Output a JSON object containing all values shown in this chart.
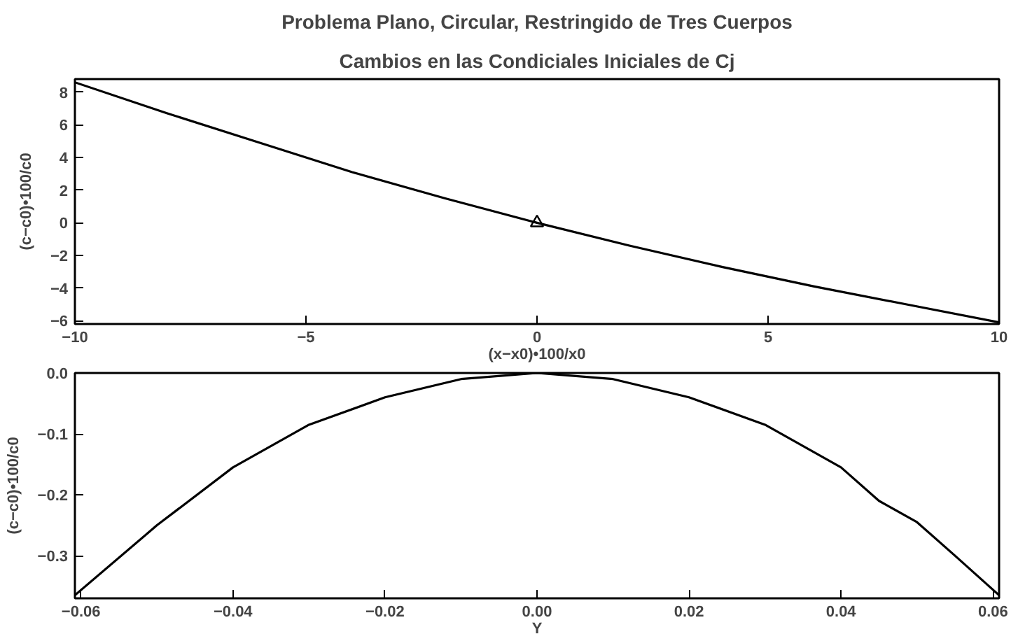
{
  "chart_data": [
    {
      "type": "line",
      "title": "Problema Plano, Circular, Restringido de Tres Cuerpos",
      "subtitle": "Cambios en las Condiciales Iniciales de Cj",
      "xlabel": "(x−x0)•100/x0",
      "ylabel": "(c−c0)•100/c0",
      "xlim": [
        -10,
        10
      ],
      "ylim": [
        -6.2,
        8.8
      ],
      "xticks": [
        -10,
        -5,
        0,
        5,
        10
      ],
      "yticks": [
        -6,
        -4,
        -2,
        0,
        2,
        4,
        6,
        8
      ],
      "grid": false,
      "series": [
        {
          "color": "#000000",
          "x": [
            -10,
            -8,
            -6,
            -4,
            -2,
            0,
            2,
            4,
            6,
            8,
            10
          ],
          "values": [
            8.6,
            6.7,
            4.9,
            3.1,
            1.5,
            0,
            -1.4,
            -2.7,
            -3.9,
            -5.0,
            -6.1
          ]
        },
        {
          "type": "scatter",
          "marker": "triangle",
          "color": "#000000",
          "x": [
            0
          ],
          "values": [
            0
          ]
        }
      ]
    },
    {
      "type": "line",
      "xlabel": "Y",
      "ylabel": "(c−c0)•100/c0",
      "xlim": [
        -0.0608,
        0.0608
      ],
      "ylim": [
        -0.37,
        0.0
      ],
      "xticks": [
        {
          "value": -0.06,
          "label": "−0.06"
        },
        {
          "value": -0.04,
          "label": "−0.04"
        },
        {
          "value": -0.02,
          "label": "−0.02"
        },
        {
          "value": 0,
          "label": "0.00"
        },
        {
          "value": 0.02,
          "label": "0.02"
        },
        {
          "value": 0.04,
          "label": "0.04"
        },
        {
          "value": 0.06,
          "label": "0.06"
        }
      ],
      "yticks": [
        {
          "value": 0,
          "label": "0.0"
        },
        {
          "value": -0.1,
          "label": "−0.1"
        },
        {
          "value": -0.2,
          "label": "−0.2"
        },
        {
          "value": -0.3,
          "label": "−0.3"
        }
      ],
      "grid": false,
      "series": [
        {
          "color": "#000000",
          "x": [
            -0.0608,
            -0.05,
            -0.04,
            -0.03,
            -0.02,
            -0.01,
            0,
            0.01,
            0.02,
            0.03,
            0.04,
            0.045,
            0.05,
            0.055,
            0.0608
          ],
          "values": [
            -0.365,
            -0.25,
            -0.155,
            -0.085,
            -0.04,
            -0.01,
            0,
            -0.01,
            -0.04,
            -0.085,
            -0.155,
            -0.21,
            -0.245,
            -0.3,
            -0.365
          ]
        }
      ]
    }
  ]
}
